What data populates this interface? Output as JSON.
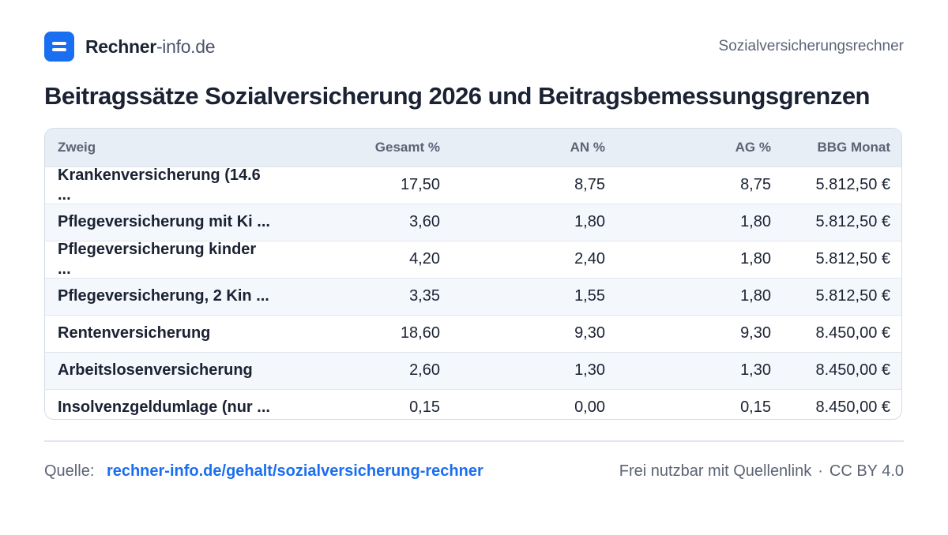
{
  "header": {
    "brand_main": "Rechner",
    "brand_sub": "-info.de",
    "right_label": "Sozialversicherungsrechner"
  },
  "title": "Beitragssätze Sozialversicherung 2026 und Beitragsbemessungsgrenzen",
  "table": {
    "columns": [
      "Zweig",
      "Gesamt %",
      "AN %",
      "AG %",
      "BBG Monat"
    ],
    "rows": [
      [
        "Krankenversicherung (14.6 ...",
        "17,50",
        "8,75",
        "8,75",
        "5.812,50 €"
      ],
      [
        "Pflegeversicherung mit Ki ...",
        "3,60",
        "1,80",
        "1,80",
        "5.812,50 €"
      ],
      [
        "Pflegeversicherung kinder ...",
        "4,20",
        "2,40",
        "1,80",
        "5.812,50 €"
      ],
      [
        "Pflegeversicherung, 2 Kin ...",
        "3,35",
        "1,55",
        "1,80",
        "5.812,50 €"
      ],
      [
        "Rentenversicherung",
        "18,60",
        "9,30",
        "9,30",
        "8.450,00 €"
      ],
      [
        "Arbeitslosenversicherung",
        "2,60",
        "1,30",
        "1,30",
        "8.450,00 €"
      ],
      [
        "Insolvenzgeldumlage (nur ...",
        "0,15",
        "0,00",
        "0,15",
        "8.450,00 €"
      ]
    ]
  },
  "footer": {
    "source_label": "Quelle:",
    "source_link": "rechner-info.de/gehalt/sozialversicherung-rechner",
    "usage": "Frei nutzbar mit Quellenlink",
    "separator": "·",
    "license": "CC BY 4.0"
  },
  "colors": {
    "accent": "#1a6ef0",
    "header_bg": "#e8eef6",
    "stripe_bg": "#f4f7fb"
  }
}
